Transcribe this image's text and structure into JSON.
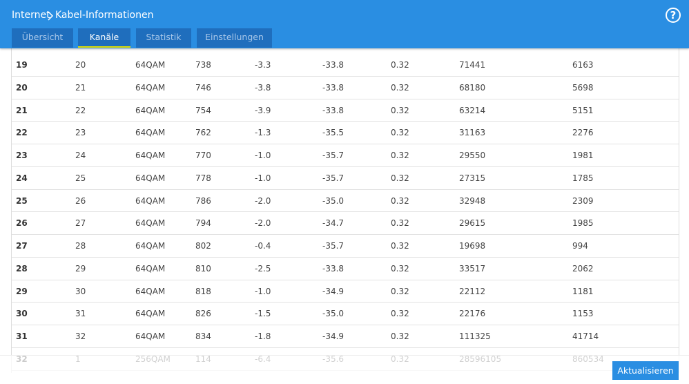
{
  "header": {
    "breadcrumb": [
      "Internet",
      "Kabel-Informationen"
    ],
    "help": "?"
  },
  "tabs": [
    {
      "label": "Übersicht",
      "active": false
    },
    {
      "label": "Kanäle",
      "active": true
    },
    {
      "label": "Statistik",
      "active": false
    },
    {
      "label": "Einstellungen",
      "active": false
    }
  ],
  "table": {
    "rows": [
      [
        "19",
        "20",
        "64QAM",
        "738",
        "-3.3",
        "-33.8",
        "0.32",
        "71441",
        "6163"
      ],
      [
        "20",
        "21",
        "64QAM",
        "746",
        "-3.8",
        "-33.8",
        "0.32",
        "68180",
        "5698"
      ],
      [
        "21",
        "22",
        "64QAM",
        "754",
        "-3.9",
        "-33.8",
        "0.32",
        "63214",
        "5151"
      ],
      [
        "22",
        "23",
        "64QAM",
        "762",
        "-1.3",
        "-35.5",
        "0.32",
        "31163",
        "2276"
      ],
      [
        "23",
        "24",
        "64QAM",
        "770",
        "-1.0",
        "-35.7",
        "0.32",
        "29550",
        "1981"
      ],
      [
        "24",
        "25",
        "64QAM",
        "778",
        "-1.0",
        "-35.7",
        "0.32",
        "27315",
        "1785"
      ],
      [
        "25",
        "26",
        "64QAM",
        "786",
        "-2.0",
        "-35.0",
        "0.32",
        "32948",
        "2309"
      ],
      [
        "26",
        "27",
        "64QAM",
        "794",
        "-2.0",
        "-34.7",
        "0.32",
        "29615",
        "1985"
      ],
      [
        "27",
        "28",
        "64QAM",
        "802",
        "-0.4",
        "-35.7",
        "0.32",
        "19698",
        "994"
      ],
      [
        "28",
        "29",
        "64QAM",
        "810",
        "-2.5",
        "-33.8",
        "0.32",
        "33517",
        "2062"
      ],
      [
        "29",
        "30",
        "64QAM",
        "818",
        "-1.0",
        "-34.9",
        "0.32",
        "22112",
        "1181"
      ],
      [
        "30",
        "31",
        "64QAM",
        "826",
        "-1.5",
        "-35.0",
        "0.32",
        "22176",
        "1153"
      ],
      [
        "31",
        "32",
        "64QAM",
        "834",
        "-1.8",
        "-34.9",
        "0.32",
        "111325",
        "41714"
      ],
      [
        "32",
        "1",
        "256QAM",
        "114",
        "-6.4",
        "-35.6",
        "0.32",
        "28596105",
        "860534"
      ]
    ]
  },
  "footer": {
    "button": "Aktualisieren"
  }
}
